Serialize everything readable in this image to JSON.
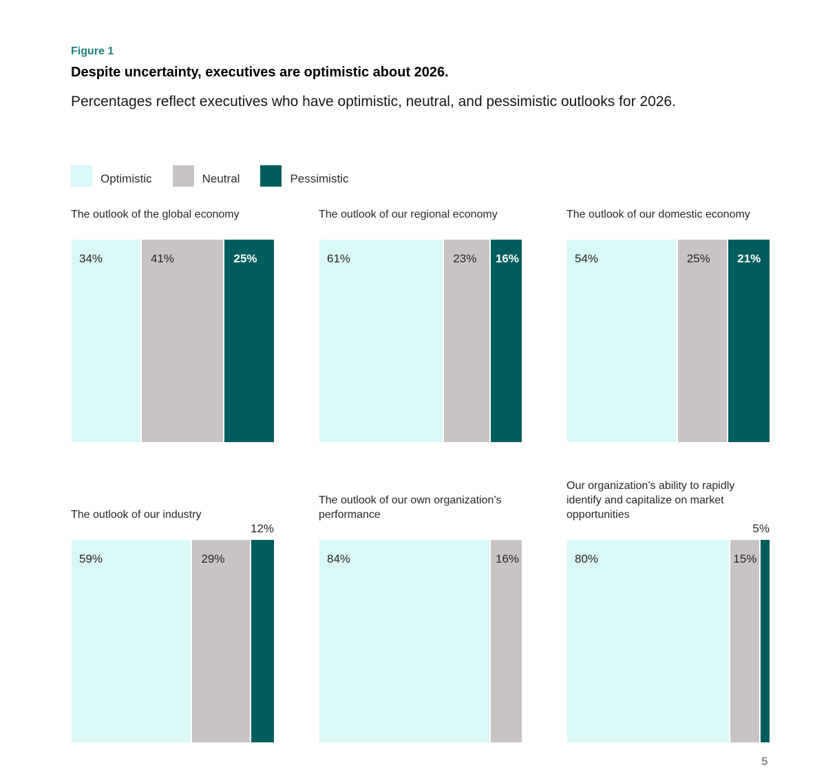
{
  "figure_label": "Figure 1",
  "title": "Despite uncertainty, executives are optimistic about 2026.",
  "subtitle": "Percentages reflect executives who have optimistic, neutral, and pessimistic outlooks for 2026.",
  "page_number": "5",
  "colors": {
    "optimistic": "#d9f8f6",
    "neutral": "#c9c4c4",
    "pessimistic": "#005d5d"
  },
  "legend": [
    {
      "label": "Optimistic",
      "key": "optimistic"
    },
    {
      "label": "Neutral",
      "key": "neutral"
    },
    {
      "label": "Pessimistic",
      "key": "pessimistic"
    }
  ],
  "chart_data": {
    "type": "bar",
    "subtype": "100% stacked horizontal proportion bars (small multiples)",
    "title": "Despite uncertainty, executives are optimistic about 2026.",
    "subtitle": "Percentages reflect executives who have optimistic, neutral, and pessimistic outlooks for 2026.",
    "legend_position": "top-left",
    "series_names": [
      "Optimistic",
      "Neutral",
      "Pessimistic"
    ],
    "panels": [
      {
        "title": "The outlook of the global economy",
        "values": [
          34,
          41,
          25
        ],
        "labels": [
          "34%",
          "41%",
          "25%"
        ]
      },
      {
        "title": "The outlook of our regional economy",
        "values": [
          61,
          23,
          16
        ],
        "labels": [
          "61%",
          "23%",
          "16%"
        ]
      },
      {
        "title": "The outlook of our domestic economy",
        "values": [
          54,
          25,
          21
        ],
        "labels": [
          "54%",
          "25%",
          "21%"
        ]
      },
      {
        "title": "The outlook of our industry",
        "values": [
          59,
          29,
          12
        ],
        "labels": [
          "59%",
          "29%",
          "12%"
        ]
      },
      {
        "title": "The outlook of our own organization’s performance",
        "values": [
          84,
          16,
          0
        ],
        "labels": [
          "84%",
          "16%",
          ""
        ]
      },
      {
        "title": "Our organization’s ability to rapidly identify and capitalize on market opportunities",
        "values": [
          80,
          15,
          5
        ],
        "labels": [
          "80%",
          "15%",
          "5%"
        ]
      }
    ]
  }
}
